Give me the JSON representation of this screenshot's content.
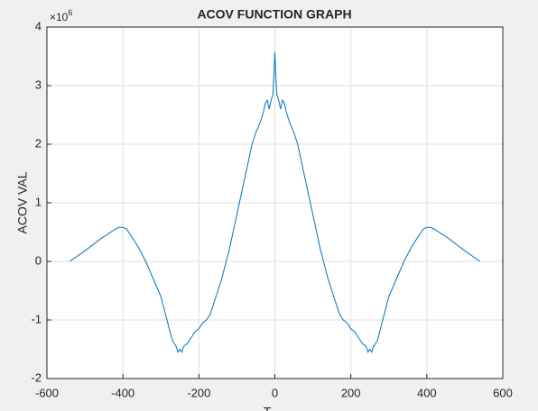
{
  "chart_data": {
    "type": "line",
    "title": "ACOV FUNCTION GRAPH",
    "ylabel": "ACOV VAL",
    "xlabel": "T",
    "y_multiplier": "×10",
    "y_multiplier_exponent": "6",
    "x": [
      -540,
      -500,
      -460,
      -420,
      -410,
      -400,
      -390,
      -380,
      -360,
      -340,
      -320,
      -300,
      -290,
      -280,
      -270,
      -260,
      -255,
      -250,
      -245,
      -240,
      -230,
      -220,
      -210,
      -200,
      -190,
      -180,
      -170,
      -160,
      -150,
      -140,
      -120,
      -100,
      -80,
      -70,
      -60,
      -50,
      -40,
      -30,
      -25,
      -20,
      -15,
      -10,
      -5,
      0,
      5,
      10,
      15,
      20,
      25,
      30,
      40,
      50,
      60,
      70,
      80,
      100,
      120,
      140,
      150,
      160,
      170,
      180,
      190,
      200,
      210,
      220,
      230,
      240,
      245,
      250,
      255,
      260,
      270,
      280,
      290,
      300,
      320,
      340,
      360,
      380,
      390,
      400,
      410,
      420,
      460,
      500,
      540
    ],
    "values": [
      0,
      0.18,
      0.38,
      0.55,
      0.58,
      0.58,
      0.55,
      0.45,
      0.25,
      0.0,
      -0.3,
      -0.6,
      -0.85,
      -1.1,
      -1.35,
      -1.45,
      -1.55,
      -1.5,
      -1.55,
      -1.45,
      -1.4,
      -1.3,
      -1.2,
      -1.15,
      -1.05,
      -1.0,
      -0.9,
      -0.7,
      -0.5,
      -0.3,
      0.2,
      0.8,
      1.4,
      1.7,
      2.0,
      2.2,
      2.35,
      2.55,
      2.7,
      2.75,
      2.6,
      2.75,
      2.85,
      3.57,
      2.85,
      2.75,
      2.6,
      2.75,
      2.7,
      2.55,
      2.35,
      2.2,
      2.0,
      1.7,
      1.4,
      0.8,
      0.2,
      -0.3,
      -0.5,
      -0.7,
      -0.9,
      -1.0,
      -1.05,
      -1.15,
      -1.2,
      -1.3,
      -1.4,
      -1.45,
      -1.55,
      -1.5,
      -1.55,
      -1.45,
      -1.35,
      -1.1,
      -0.85,
      -0.6,
      -0.3,
      0,
      0.25,
      0.45,
      0.55,
      0.58,
      0.58,
      0.55,
      0.38,
      0.18,
      0
    ],
    "color": "#0072bd",
    "xlim": [
      -600,
      600
    ],
    "xticks": [
      -600,
      -400,
      -200,
      0,
      200,
      400,
      600
    ],
    "ylim": [
      -2,
      4
    ],
    "yticks": [
      -2,
      -1,
      0,
      1,
      2,
      3,
      4
    ],
    "grid": true
  }
}
